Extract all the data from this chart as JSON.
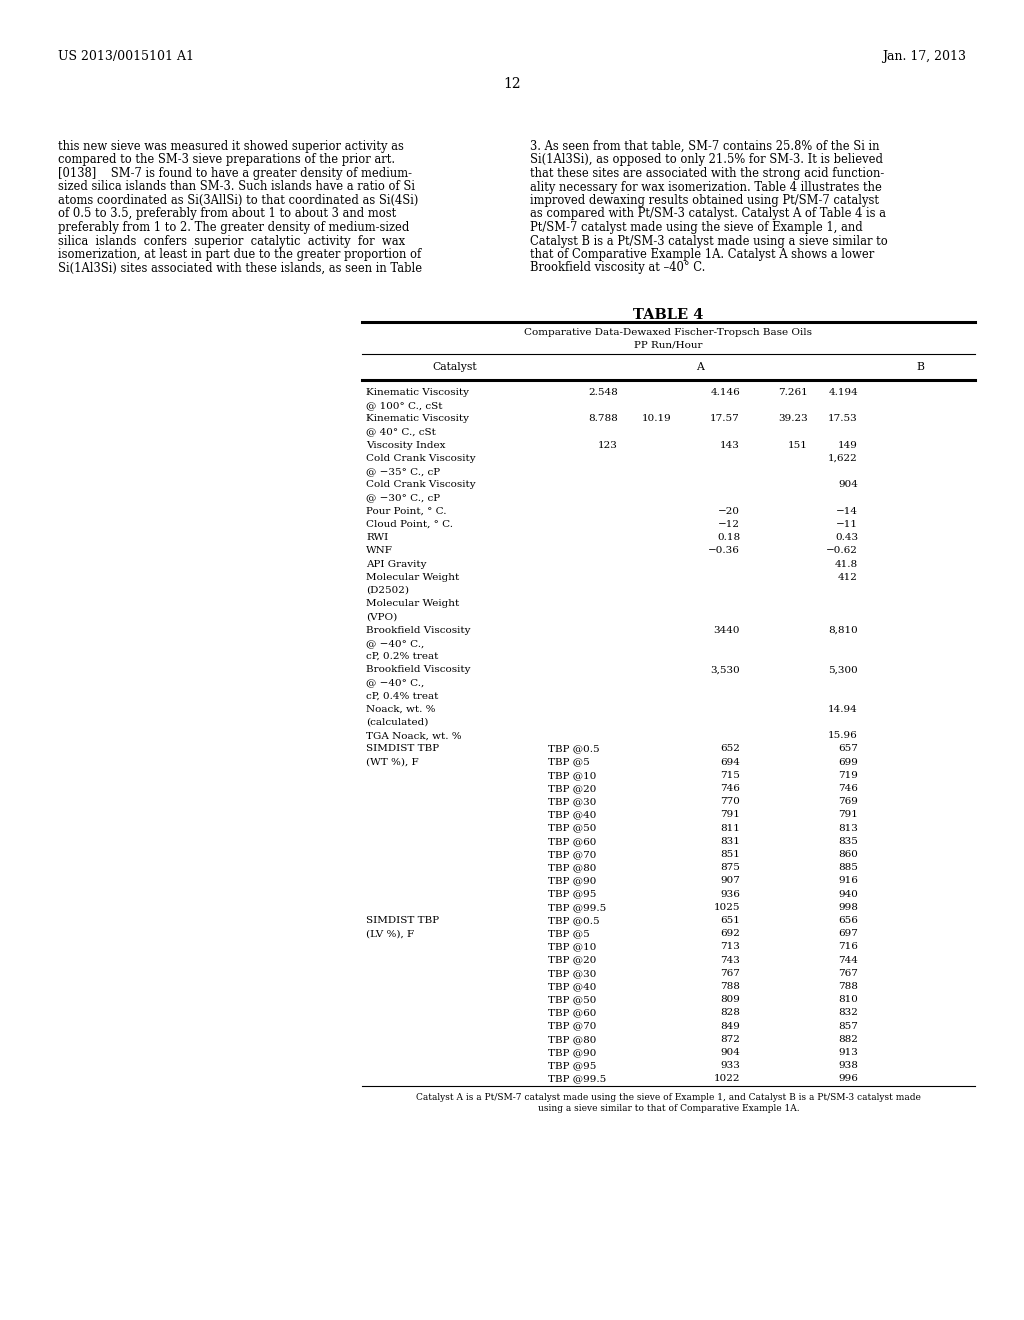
{
  "patent_left": "US 2013/0015101 A1",
  "patent_right": "Jan. 17, 2013",
  "page_num": "12",
  "body_left": [
    "this new sieve was measured it showed superior activity as",
    "compared to the SM-3 sieve preparations of the prior art.",
    "[0138]    SM-7 is found to have a greater density of medium-",
    "sized silica islands than SM-3. Such islands have a ratio of Si",
    "atoms coordinated as Si(3AllSi) to that coordinated as Si(4Si)",
    "of 0.5 to 3.5, preferably from about 1 to about 3 and most",
    "preferably from 1 to 2. The greater density of medium-sized",
    "silica  islands  confers  superior  catalytic  activity  for  wax",
    "isomerization, at least in part due to the greater proportion of",
    "Si(1Al3Si) sites associated with these islands, as seen in Table"
  ],
  "body_right": [
    "3. As seen from that table, SM-7 contains 25.8% of the Si in",
    "Si(1Al3Si), as opposed to only 21.5% for SM-3. It is believed",
    "that these sites are associated with the strong acid function-",
    "ality necessary for wax isomerization. Table 4 illustrates the",
    "improved dewaxing results obtained using Pt/SM-7 catalyst",
    "as compared with Pt/SM-3 catalyst. Catalyst A of Table 4 is a",
    "Pt/SM-7 catalyst made using the sieve of Example 1, and",
    "Catalyst B is a Pt/SM-3 catalyst made using a sieve similar to",
    "that of Comparative Example 1A. Catalyst A shows a lower",
    "Brookfield viscosity at –40° C."
  ],
  "table_title": "TABLE 4",
  "table_subtitle1": "Comparative Data-Dewaxed Fischer-Tropsch Base Oils",
  "table_subtitle2": "PP Run/Hour",
  "table_caption": [
    "Catalyst A is a Pt/SM-7 catalyst made using the sieve of Example 1, and Catalyst B is a Pt/SM-3 catalyst made",
    "using a sieve similar to that of Comparative Example 1A."
  ],
  "rows": [
    {
      "p": "Kinematic Viscosity",
      "s": "",
      "v1": "2.548",
      "v2": "",
      "v3": "4.146",
      "v4": "7.261",
      "vB": "4.194"
    },
    {
      "p": "@ 100° C., cSt",
      "s": "",
      "v1": "",
      "v2": "",
      "v3": "",
      "v4": "",
      "vB": ""
    },
    {
      "p": "Kinematic Viscosity",
      "s": "",
      "v1": "8.788",
      "v2": "10.19",
      "v3": "17.57",
      "v4": "39.23",
      "vB": "17.53"
    },
    {
      "p": "@ 40° C., cSt",
      "s": "",
      "v1": "",
      "v2": "",
      "v3": "",
      "v4": "",
      "vB": ""
    },
    {
      "p": "Viscosity Index",
      "s": "",
      "v1": "123",
      "v2": "",
      "v3": "143",
      "v4": "151",
      "vB": "149"
    },
    {
      "p": "Cold Crank Viscosity",
      "s": "",
      "v1": "",
      "v2": "",
      "v3": "",
      "v4": "",
      "vB": "1,622"
    },
    {
      "p": "@ −35° C., cP",
      "s": "",
      "v1": "",
      "v2": "",
      "v3": "",
      "v4": "",
      "vB": ""
    },
    {
      "p": "Cold Crank Viscosity",
      "s": "",
      "v1": "",
      "v2": "",
      "v3": "",
      "v4": "",
      "vB": "904"
    },
    {
      "p": "@ −30° C., cP",
      "s": "",
      "v1": "",
      "v2": "",
      "v3": "",
      "v4": "",
      "vB": ""
    },
    {
      "p": "Pour Point, ° C.",
      "s": "",
      "v1": "",
      "v2": "",
      "v3": "−20",
      "v4": "",
      "vB": "−14"
    },
    {
      "p": "Cloud Point, ° C.",
      "s": "",
      "v1": "",
      "v2": "",
      "v3": "−12",
      "v4": "",
      "vB": "−11"
    },
    {
      "p": "RWI",
      "s": "",
      "v1": "",
      "v2": "",
      "v3": "0.18",
      "v4": "",
      "vB": "0.43"
    },
    {
      "p": "WNF",
      "s": "",
      "v1": "",
      "v2": "",
      "v3": "−0.36",
      "v4": "",
      "vB": "−0.62"
    },
    {
      "p": "API Gravity",
      "s": "",
      "v1": "",
      "v2": "",
      "v3": "",
      "v4": "",
      "vB": "41.8"
    },
    {
      "p": "Molecular Weight",
      "s": "",
      "v1": "",
      "v2": "",
      "v3": "",
      "v4": "",
      "vB": "412"
    },
    {
      "p": "(D2502)",
      "s": "",
      "v1": "",
      "v2": "",
      "v3": "",
      "v4": "",
      "vB": ""
    },
    {
      "p": "Molecular Weight",
      "s": "",
      "v1": "",
      "v2": "",
      "v3": "",
      "v4": "",
      "vB": ""
    },
    {
      "p": "(VPO)",
      "s": "",
      "v1": "",
      "v2": "",
      "v3": "",
      "v4": "",
      "vB": ""
    },
    {
      "p": "Brookfield Viscosity",
      "s": "",
      "v1": "",
      "v2": "",
      "v3": "3440",
      "v4": "",
      "vB": "8,810"
    },
    {
      "p": "@ −40° C.,",
      "s": "",
      "v1": "",
      "v2": "",
      "v3": "",
      "v4": "",
      "vB": ""
    },
    {
      "p": "cP, 0.2% treat",
      "s": "",
      "v1": "",
      "v2": "",
      "v3": "",
      "v4": "",
      "vB": ""
    },
    {
      "p": "Brookfield Viscosity",
      "s": "",
      "v1": "",
      "v2": "",
      "v3": "3,530",
      "v4": "",
      "vB": "5,300"
    },
    {
      "p": "@ −40° C.,",
      "s": "",
      "v1": "",
      "v2": "",
      "v3": "",
      "v4": "",
      "vB": ""
    },
    {
      "p": "cP, 0.4% treat",
      "s": "",
      "v1": "",
      "v2": "",
      "v3": "",
      "v4": "",
      "vB": ""
    },
    {
      "p": "Noack, wt. %",
      "s": "",
      "v1": "",
      "v2": "",
      "v3": "",
      "v4": "",
      "vB": "14.94"
    },
    {
      "p": "(calculated)",
      "s": "",
      "v1": "",
      "v2": "",
      "v3": "",
      "v4": "",
      "vB": ""
    },
    {
      "p": "TGA Noack, wt. %",
      "s": "",
      "v1": "",
      "v2": "",
      "v3": "",
      "v4": "",
      "vB": "15.96"
    },
    {
      "p": "SIMDIST TBP",
      "s": "TBP @0.5",
      "v1": "",
      "v2": "",
      "v3": "652",
      "v4": "",
      "vB": "657"
    },
    {
      "p": "(WT %), F",
      "s": "TBP @5",
      "v1": "",
      "v2": "",
      "v3": "694",
      "v4": "",
      "vB": "699"
    },
    {
      "p": "",
      "s": "TBP @10",
      "v1": "",
      "v2": "",
      "v3": "715",
      "v4": "",
      "vB": "719"
    },
    {
      "p": "",
      "s": "TBP @20",
      "v1": "",
      "v2": "",
      "v3": "746",
      "v4": "",
      "vB": "746"
    },
    {
      "p": "",
      "s": "TBP @30",
      "v1": "",
      "v2": "",
      "v3": "770",
      "v4": "",
      "vB": "769"
    },
    {
      "p": "",
      "s": "TBP @40",
      "v1": "",
      "v2": "",
      "v3": "791",
      "v4": "",
      "vB": "791"
    },
    {
      "p": "",
      "s": "TBP @50",
      "v1": "",
      "v2": "",
      "v3": "811",
      "v4": "",
      "vB": "813"
    },
    {
      "p": "",
      "s": "TBP @60",
      "v1": "",
      "v2": "",
      "v3": "831",
      "v4": "",
      "vB": "835"
    },
    {
      "p": "",
      "s": "TBP @70",
      "v1": "",
      "v2": "",
      "v3": "851",
      "v4": "",
      "vB": "860"
    },
    {
      "p": "",
      "s": "TBP @80",
      "v1": "",
      "v2": "",
      "v3": "875",
      "v4": "",
      "vB": "885"
    },
    {
      "p": "",
      "s": "TBP @90",
      "v1": "",
      "v2": "",
      "v3": "907",
      "v4": "",
      "vB": "916"
    },
    {
      "p": "",
      "s": "TBP @95",
      "v1": "",
      "v2": "",
      "v3": "936",
      "v4": "",
      "vB": "940"
    },
    {
      "p": "",
      "s": "TBP @99.5",
      "v1": "",
      "v2": "",
      "v3": "1025",
      "v4": "",
      "vB": "998"
    },
    {
      "p": "SIMDIST TBP",
      "s": "TBP @0.5",
      "v1": "",
      "v2": "",
      "v3": "651",
      "v4": "",
      "vB": "656"
    },
    {
      "p": "(LV %), F",
      "s": "TBP @5",
      "v1": "",
      "v2": "",
      "v3": "692",
      "v4": "",
      "vB": "697"
    },
    {
      "p": "",
      "s": "TBP @10",
      "v1": "",
      "v2": "",
      "v3": "713",
      "v4": "",
      "vB": "716"
    },
    {
      "p": "",
      "s": "TBP @20",
      "v1": "",
      "v2": "",
      "v3": "743",
      "v4": "",
      "vB": "744"
    },
    {
      "p": "",
      "s": "TBP @30",
      "v1": "",
      "v2": "",
      "v3": "767",
      "v4": "",
      "vB": "767"
    },
    {
      "p": "",
      "s": "TBP @40",
      "v1": "",
      "v2": "",
      "v3": "788",
      "v4": "",
      "vB": "788"
    },
    {
      "p": "",
      "s": "TBP @50",
      "v1": "",
      "v2": "",
      "v3": "809",
      "v4": "",
      "vB": "810"
    },
    {
      "p": "",
      "s": "TBP @60",
      "v1": "",
      "v2": "",
      "v3": "828",
      "v4": "",
      "vB": "832"
    },
    {
      "p": "",
      "s": "TBP @70",
      "v1": "",
      "v2": "",
      "v3": "849",
      "v4": "",
      "vB": "857"
    },
    {
      "p": "",
      "s": "TBP @80",
      "v1": "",
      "v2": "",
      "v3": "872",
      "v4": "",
      "vB": "882"
    },
    {
      "p": "",
      "s": "TBP @90",
      "v1": "",
      "v2": "",
      "v3": "904",
      "v4": "",
      "vB": "913"
    },
    {
      "p": "",
      "s": "TBP @95",
      "v1": "",
      "v2": "",
      "v3": "933",
      "v4": "",
      "vB": "938"
    },
    {
      "p": "",
      "s": "TBP @99.5",
      "v1": "",
      "v2": "",
      "v3": "1022",
      "v4": "",
      "vB": "996"
    }
  ]
}
